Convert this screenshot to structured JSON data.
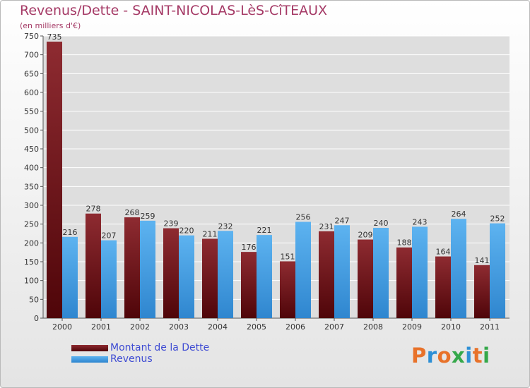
{
  "chart_data": {
    "type": "bar",
    "title": "Revenus/Dette - SAINT-NICOLAS-LèS-CîTEAUX",
    "subtitle": "(en milliers d'€)",
    "categories": [
      "2000",
      "2001",
      "2002",
      "2003",
      "2004",
      "2005",
      "2006",
      "2007",
      "2008",
      "2009",
      "2010",
      "2011"
    ],
    "series": [
      {
        "name": "Montant de la Dette",
        "color": "#6e1016",
        "values": [
          735,
          278,
          268,
          239,
          211,
          176,
          151,
          231,
          209,
          188,
          164,
          141
        ]
      },
      {
        "name": "Revenus",
        "color": "#4aa3e6",
        "values": [
          216,
          207,
          259,
          220,
          232,
          221,
          256,
          247,
          240,
          243,
          264,
          252
        ]
      }
    ],
    "ylim": [
      0,
      750
    ],
    "yticks": [
      0,
      50,
      100,
      150,
      200,
      250,
      300,
      350,
      400,
      450,
      500,
      550,
      600,
      650,
      700,
      750
    ],
    "grid": true,
    "legend_position": "bottom-left"
  },
  "logo_text": "Proxiti",
  "colors": {
    "title": "#a53a66",
    "legend_text": "#3f4cd3",
    "grid": "#ffffff",
    "axis": "#555555",
    "logo": [
      "#e8722a",
      "#2d8fd5",
      "#e8722a",
      "#35a84a",
      "#2d8fd5",
      "#e8722a",
      "#35a84a"
    ]
  }
}
